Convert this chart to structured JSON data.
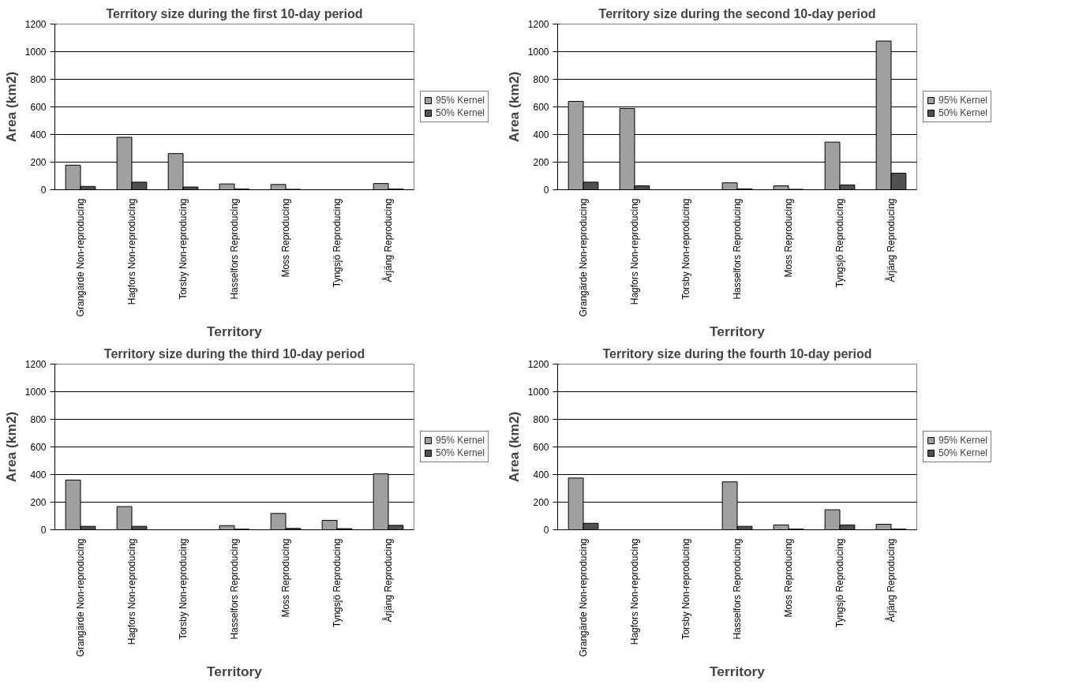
{
  "chart_data": [
    {
      "type": "bar",
      "title": "Territory size during the first 10-day period",
      "xlabel": "Territory",
      "ylabel": "Area (km2)",
      "categories": [
        "Grangärde Non-reproducing",
        "Hagfors Non-reproducing",
        "Torsby Non-reproducing",
        "Hasselfors Reproducing",
        "Moss Reproducing",
        "Tyngsjö Reproducing",
        "Årjäng Reproducing"
      ],
      "series": [
        {
          "name": "95% Kernel",
          "color": "#a0a0a0",
          "values": [
            178,
            380,
            262,
            42,
            38,
            null,
            45
          ]
        },
        {
          "name": "50% Kernel",
          "color": "#505050",
          "values": [
            24,
            55,
            20,
            5,
            3,
            null,
            5
          ]
        }
      ],
      "ylim": [
        0,
        1200
      ],
      "yticks": [
        0,
        200,
        400,
        600,
        800,
        1000,
        1200
      ],
      "grid": "y",
      "legend": "right"
    },
    {
      "type": "bar",
      "title": "Territory size during the second 10-day period",
      "xlabel": "Territory",
      "ylabel": "Area (km2)",
      "categories": [
        "Grangärde Non-reproducing",
        "Hagfors Non-reproducing",
        "Torsby Non-reproducing",
        "Hasselfors Reproducing",
        "Moss Reproducing",
        "Tyngsjö Reproducing",
        "Årjäng Reproducing"
      ],
      "series": [
        {
          "name": "95% Kernel",
          "color": "#a0a0a0",
          "values": [
            640,
            588,
            null,
            50,
            28,
            345,
            1077
          ]
        },
        {
          "name": "50% Kernel",
          "color": "#505050",
          "values": [
            55,
            28,
            null,
            6,
            3,
            35,
            120
          ]
        }
      ],
      "ylim": [
        0,
        1200
      ],
      "yticks": [
        0,
        200,
        400,
        600,
        800,
        1000,
        1200
      ],
      "grid": "y",
      "legend": "right"
    },
    {
      "type": "bar",
      "title": "Territory size during the third 10-day period",
      "xlabel": "Territory",
      "ylabel": "Area (km2)",
      "categories": [
        "Grangärde Non-reproducing",
        "Hagfors Non-reproducing",
        "Torsby Non-reproducing",
        "Hasselfors Reproducing",
        "Moss Reproducing",
        "Tyngsjö Reproducing",
        "Årjäng Reproducing"
      ],
      "series": [
        {
          "name": "95% Kernel",
          "color": "#a0a0a0",
          "values": [
            360,
            168,
            null,
            30,
            118,
            68,
            405
          ]
        },
        {
          "name": "50% Kernel",
          "color": "#505050",
          "values": [
            25,
            25,
            null,
            4,
            10,
            8,
            32
          ]
        }
      ],
      "ylim": [
        0,
        1200
      ],
      "yticks": [
        0,
        200,
        400,
        600,
        800,
        1000,
        1200
      ],
      "grid": "y",
      "legend": "right"
    },
    {
      "type": "bar",
      "title": "Territory size during the fourth 10-day period",
      "xlabel": "Territory",
      "ylabel": "Area (km2)",
      "categories": [
        "Grangärde Non-reproducing",
        "Hagfors Non-reproducing",
        "Torsby Non-reproducing",
        "Hasselfors Reproducing",
        "Moss Reproducing",
        "Tyngsjö Reproducing",
        "Årjäng Reproducing"
      ],
      "series": [
        {
          "name": "95% Kernel",
          "color": "#a0a0a0",
          "values": [
            375,
            null,
            null,
            347,
            35,
            145,
            40
          ]
        },
        {
          "name": "50% Kernel",
          "color": "#505050",
          "values": [
            47,
            null,
            null,
            25,
            5,
            35,
            5
          ]
        }
      ],
      "ylim": [
        0,
        1200
      ],
      "yticks": [
        0,
        200,
        400,
        600,
        800,
        1000,
        1200
      ],
      "grid": "y",
      "legend": "right"
    }
  ]
}
